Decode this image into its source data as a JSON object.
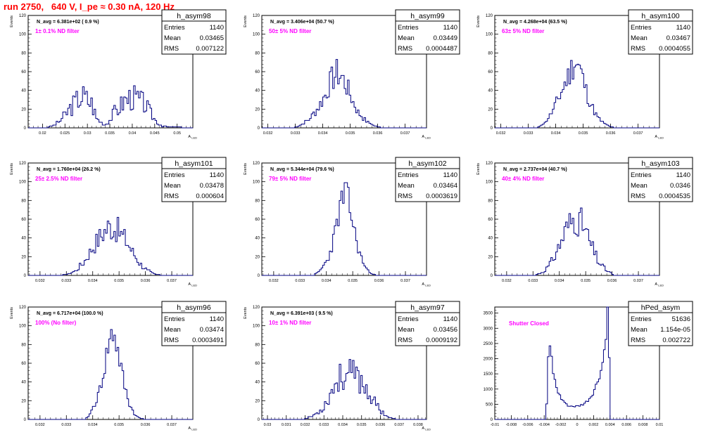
{
  "page_title": "run 2750,   640 V, I_pe ≈ 0.30 nA, 120 Hz",
  "colors": {
    "title": "#ff0000",
    "label": "#ff00ff",
    "hist": "#000080",
    "frame": "#000000"
  },
  "stats_labels": {
    "entries": "Entries",
    "mean": "Mean",
    "rms": "RMS"
  },
  "chart_data": [
    {
      "type": "histogram",
      "title": "h_asym98",
      "ylabel": "Events",
      "xlabel": "A_{LED}",
      "annotation": "N_avg = 6.381e+02 ( 0.9 %)",
      "filter_label": "1± 0.1% ND filter",
      "stats": {
        "entries": "1140",
        "mean": "0.03465",
        "rms": "0.007122"
      },
      "xlim": [
        0.0168,
        0.0535
      ],
      "ylim": [
        0,
        120
      ],
      "xticks": [
        0.02,
        0.025,
        0.03,
        0.035,
        0.04,
        0.045,
        0.05
      ],
      "xticklabels": [
        "0.02",
        "0.025",
        "0.03",
        "0.035",
        "0.04",
        "0.045",
        "0.05"
      ],
      "yticks": [
        0,
        20,
        40,
        60,
        80,
        100,
        120
      ],
      "profile": [
        [
          0.0168,
          0
        ],
        [
          0.021,
          0
        ],
        [
          0.022,
          2
        ],
        [
          0.023,
          4
        ],
        [
          0.024,
          8
        ],
        [
          0.025,
          14
        ],
        [
          0.026,
          20
        ],
        [
          0.027,
          26
        ],
        [
          0.028,
          31
        ],
        [
          0.029,
          34
        ],
        [
          0.03,
          30
        ],
        [
          0.031,
          26
        ],
        [
          0.0315,
          20
        ],
        [
          0.032,
          10
        ],
        [
          0.033,
          6
        ],
        [
          0.034,
          3
        ],
        [
          0.035,
          9
        ],
        [
          0.036,
          17
        ],
        [
          0.037,
          21
        ],
        [
          0.038,
          28
        ],
        [
          0.039,
          31
        ],
        [
          0.04,
          33
        ],
        [
          0.041,
          31
        ],
        [
          0.042,
          28
        ],
        [
          0.043,
          24
        ],
        [
          0.044,
          16
        ],
        [
          0.045,
          9
        ],
        [
          0.046,
          4
        ],
        [
          0.047,
          2
        ],
        [
          0.048,
          1
        ],
        [
          0.0535,
          0
        ]
      ],
      "noise": 0.45,
      "seed": 3
    },
    {
      "type": "histogram",
      "title": "h_asym99",
      "ylabel": "Events",
      "xlabel": "A_{LED}",
      "annotation": "N_avg = 3.406e+04 (50.7 %)",
      "filter_label": "50± 5% ND filter",
      "stats": {
        "entries": "1140",
        "mean": "0.03449",
        "rms": "0.0004487"
      },
      "xlim": [
        0.03178,
        0.03778
      ],
      "ylim": [
        0,
        120
      ],
      "xticks": [
        0.032,
        0.033,
        0.034,
        0.035,
        0.036,
        0.037
      ],
      "xticklabels": [
        "0.032",
        "0.033",
        "0.034",
        "0.035",
        "0.036",
        "0.037"
      ],
      "yticks": [
        0,
        20,
        40,
        60,
        80,
        100,
        120
      ],
      "profile": [
        [
          0.03178,
          0
        ],
        [
          0.0329,
          0
        ],
        [
          0.0332,
          3
        ],
        [
          0.0335,
          9
        ],
        [
          0.0338,
          20
        ],
        [
          0.0341,
          36
        ],
        [
          0.0343,
          50
        ],
        [
          0.0345,
          58
        ],
        [
          0.0347,
          54
        ],
        [
          0.0349,
          42
        ],
        [
          0.0351,
          28
        ],
        [
          0.0353,
          16
        ],
        [
          0.0356,
          7
        ],
        [
          0.0359,
          2
        ],
        [
          0.0362,
          0
        ],
        [
          0.03778,
          0
        ]
      ],
      "noise": 0.28,
      "seed": 7
    },
    {
      "type": "histogram",
      "title": "h_asym100",
      "ylabel": "Events",
      "xlabel": "A_{LED}",
      "annotation": "N_avg = 4.268e+04 (63.5 %)",
      "filter_label": "63± 5% ND filter",
      "stats": {
        "entries": "1140",
        "mean": "0.03467",
        "rms": "0.0004055"
      },
      "xlim": [
        0.03178,
        0.03778
      ],
      "ylim": [
        0,
        120
      ],
      "xticks": [
        0.032,
        0.033,
        0.034,
        0.035,
        0.036,
        0.037
      ],
      "xticklabels": [
        "0.032",
        "0.033",
        "0.034",
        "0.035",
        "0.036",
        "0.037"
      ],
      "yticks": [
        0,
        20,
        40,
        60,
        80,
        100,
        120
      ],
      "profile": [
        [
          0.03178,
          0
        ],
        [
          0.0333,
          0
        ],
        [
          0.0336,
          5
        ],
        [
          0.0339,
          18
        ],
        [
          0.0342,
          38
        ],
        [
          0.0345,
          58
        ],
        [
          0.0347,
          72
        ],
        [
          0.0349,
          62
        ],
        [
          0.0351,
          40
        ],
        [
          0.0353,
          24
        ],
        [
          0.0355,
          12
        ],
        [
          0.0358,
          4
        ],
        [
          0.036,
          1
        ],
        [
          0.0362,
          0
        ],
        [
          0.03778,
          0
        ]
      ],
      "noise": 0.25,
      "seed": 11
    },
    {
      "type": "histogram",
      "title": "h_asym101",
      "ylabel": "Events",
      "xlabel": "A_{LED}",
      "annotation": "N_avg = 1.760e+04 (26.2 %)",
      "filter_label": "25± 2.5% ND filter",
      "stats": {
        "entries": "1140",
        "mean": "0.03478",
        "rms": "0.000604"
      },
      "xlim": [
        0.03155,
        0.0378
      ],
      "ylim": [
        0,
        120
      ],
      "xticks": [
        0.032,
        0.033,
        0.034,
        0.035,
        0.036,
        0.037
      ],
      "xticklabels": [
        "0.032",
        "0.033",
        "0.034",
        "0.035",
        "0.036",
        "0.037"
      ],
      "yticks": [
        0,
        20,
        40,
        60,
        80,
        100,
        120
      ],
      "profile": [
        [
          0.03155,
          0
        ],
        [
          0.0328,
          0
        ],
        [
          0.0331,
          2
        ],
        [
          0.0334,
          6
        ],
        [
          0.0337,
          16
        ],
        [
          0.034,
          30
        ],
        [
          0.0343,
          42
        ],
        [
          0.0346,
          52
        ],
        [
          0.0349,
          50
        ],
        [
          0.0352,
          40
        ],
        [
          0.0355,
          26
        ],
        [
          0.0358,
          12
        ],
        [
          0.0361,
          5
        ],
        [
          0.0364,
          1
        ],
        [
          0.0366,
          0
        ],
        [
          0.0378,
          0
        ]
      ],
      "noise": 0.3,
      "seed": 17
    },
    {
      "type": "histogram",
      "title": "h_asym102",
      "ylabel": "Events",
      "xlabel": "A_{LED}",
      "annotation": "N_avg = 5.344e+04 (79.6 %)",
      "filter_label": "79± 5% ND filter",
      "stats": {
        "entries": "1140",
        "mean": "0.03464",
        "rms": "0.0003619"
      },
      "xlim": [
        0.03155,
        0.0378
      ],
      "ylim": [
        0,
        120
      ],
      "xticks": [
        0.032,
        0.033,
        0.034,
        0.035,
        0.036,
        0.037
      ],
      "xticklabels": [
        "0.032",
        "0.033",
        "0.034",
        "0.035",
        "0.036",
        "0.037"
      ],
      "yticks": [
        0,
        20,
        40,
        60,
        80,
        100,
        120
      ],
      "profile": [
        [
          0.03155,
          0
        ],
        [
          0.0335,
          0
        ],
        [
          0.0338,
          6
        ],
        [
          0.0341,
          20
        ],
        [
          0.0343,
          42
        ],
        [
          0.0345,
          70
        ],
        [
          0.0347,
          88
        ],
        [
          0.0349,
          72
        ],
        [
          0.0351,
          42
        ],
        [
          0.0353,
          20
        ],
        [
          0.0355,
          8
        ],
        [
          0.0357,
          2
        ],
        [
          0.0359,
          0
        ],
        [
          0.0378,
          0
        ]
      ],
      "noise": 0.22,
      "seed": 23
    },
    {
      "type": "histogram",
      "title": "h_asym103",
      "ylabel": "Events",
      "xlabel": "A_{LED}",
      "annotation": "N_avg = 2.737e+04 (40.7 %)",
      "filter_label": "40± 4% ND filter",
      "stats": {
        "entries": "1140",
        "mean": "0.0346",
        "rms": "0.0004535"
      },
      "xlim": [
        0.03155,
        0.0378
      ],
      "ylim": [
        0,
        120
      ],
      "xticks": [
        0.032,
        0.033,
        0.034,
        0.035,
        0.036,
        0.037
      ],
      "xticklabels": [
        "0.032",
        "0.033",
        "0.034",
        "0.035",
        "0.036",
        "0.037"
      ],
      "yticks": [
        0,
        20,
        40,
        60,
        80,
        100,
        120
      ],
      "profile": [
        [
          0.03155,
          0
        ],
        [
          0.0331,
          0
        ],
        [
          0.0334,
          4
        ],
        [
          0.0337,
          14
        ],
        [
          0.034,
          32
        ],
        [
          0.0343,
          52
        ],
        [
          0.0346,
          62
        ],
        [
          0.0349,
          54
        ],
        [
          0.0352,
          32
        ],
        [
          0.0355,
          14
        ],
        [
          0.0358,
          5
        ],
        [
          0.0361,
          0
        ],
        [
          0.0378,
          0
        ]
      ],
      "noise": 0.3,
      "seed": 31
    },
    {
      "type": "histogram",
      "title": "h_asym96",
      "ylabel": "Events",
      "xlabel": "A_{LED}",
      "annotation": "N_avg = 6.717e+04 (100.0 %)",
      "filter_label": "100% (No filter)",
      "stats": {
        "entries": "1140",
        "mean": "0.03474",
        "rms": "0.0003491"
      },
      "xlim": [
        0.03155,
        0.0378
      ],
      "ylim": [
        0,
        120
      ],
      "xticks": [
        0.032,
        0.033,
        0.034,
        0.035,
        0.036,
        0.037
      ],
      "xticklabels": [
        "0.032",
        "0.033",
        "0.034",
        "0.035",
        "0.036",
        "0.037"
      ],
      "yticks": [
        0,
        20,
        40,
        60,
        80,
        100,
        120
      ],
      "profile": [
        [
          0.03155,
          0
        ],
        [
          0.0337,
          0
        ],
        [
          0.0339,
          6
        ],
        [
          0.0342,
          24
        ],
        [
          0.0344,
          48
        ],
        [
          0.0346,
          80
        ],
        [
          0.0348,
          95
        ],
        [
          0.035,
          66
        ],
        [
          0.0352,
          36
        ],
        [
          0.0354,
          16
        ],
        [
          0.0356,
          5
        ],
        [
          0.0358,
          1
        ],
        [
          0.036,
          0
        ],
        [
          0.0378,
          0
        ]
      ],
      "noise": 0.2,
      "seed": 41
    },
    {
      "type": "histogram",
      "title": "h_asym97",
      "ylabel": "Events",
      "xlabel": "A_{LED}",
      "annotation": "N_avg = 6.391e+03 ( 9.5 %)",
      "filter_label": "10± 1% ND filter",
      "stats": {
        "entries": "1140",
        "mean": "0.03456",
        "rms": "0.0009192"
      },
      "xlim": [
        0.0297,
        0.03845
      ],
      "ylim": [
        0,
        120
      ],
      "xticks": [
        0.03,
        0.031,
        0.032,
        0.033,
        0.034,
        0.035,
        0.036,
        0.037,
        0.038
      ],
      "xticklabels": [
        "0.03",
        "0.031",
        "0.032",
        "0.033",
        "0.034",
        "0.035",
        "0.036",
        "0.037",
        "0.038"
      ],
      "yticks": [
        0,
        20,
        40,
        60,
        80,
        100,
        120
      ],
      "profile": [
        [
          0.0297,
          0
        ],
        [
          0.0318,
          0
        ],
        [
          0.0322,
          2
        ],
        [
          0.0326,
          6
        ],
        [
          0.033,
          14
        ],
        [
          0.0333,
          26
        ],
        [
          0.0336,
          38
        ],
        [
          0.0339,
          46
        ],
        [
          0.0343,
          48
        ],
        [
          0.0347,
          46
        ],
        [
          0.0351,
          38
        ],
        [
          0.0354,
          28
        ],
        [
          0.0357,
          18
        ],
        [
          0.036,
          10
        ],
        [
          0.0363,
          4
        ],
        [
          0.0366,
          1
        ],
        [
          0.0369,
          0
        ],
        [
          0.03845,
          0
        ]
      ],
      "noise": 0.35,
      "seed": 53
    },
    {
      "type": "histogram",
      "title": "hPed_asym",
      "ylabel": "",
      "xlabel": "",
      "annotation": "",
      "filter_label": "Shutter Closed",
      "stats": {
        "entries": "51636",
        "mean": "1.154e-05",
        "rms": "0.002722"
      },
      "xlim": [
        -0.01,
        0.01
      ],
      "ylim": [
        0,
        3700
      ],
      "xticks": [
        -0.01,
        -0.008,
        -0.006,
        -0.004,
        -0.002,
        0,
        0.002,
        0.004,
        0.006,
        0.008,
        0.01
      ],
      "xticklabels": [
        "-0.01",
        "-0.008",
        "-0.006",
        "-0.004",
        "-0.002",
        "0",
        "0.002",
        "0.004",
        "0.006",
        "0.008",
        "0.01"
      ],
      "yticks": [
        0,
        500,
        1000,
        1500,
        2000,
        2500,
        3000,
        3500
      ],
      "profile": [
        [
          -0.01,
          0
        ],
        [
          -0.0038,
          0
        ],
        [
          -0.0036,
          1000
        ],
        [
          -0.0034,
          3000
        ],
        [
          -0.0032,
          2200
        ],
        [
          -0.0029,
          1500
        ],
        [
          -0.0026,
          1100
        ],
        [
          -0.0022,
          800
        ],
        [
          -0.0018,
          620
        ],
        [
          -0.0012,
          480
        ],
        [
          -0.0006,
          420
        ],
        [
          0,
          420
        ],
        [
          0.0006,
          470
        ],
        [
          0.0012,
          580
        ],
        [
          0.0018,
          780
        ],
        [
          0.0024,
          1150
        ],
        [
          0.003,
          1650
        ],
        [
          0.0034,
          2400
        ],
        [
          0.0037,
          3500
        ],
        [
          0.0039,
          2000
        ],
        [
          0.004,
          0
        ],
        [
          0.01,
          0
        ]
      ],
      "noise": 0.08,
      "seed": 61
    }
  ]
}
